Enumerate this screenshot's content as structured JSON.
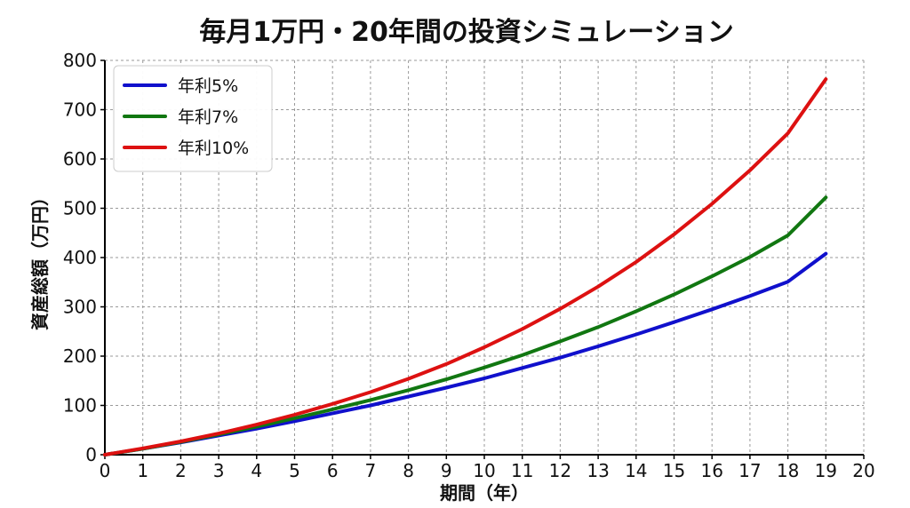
{
  "chart_data": {
    "type": "line",
    "title": "毎月1万円・20年間の投資シミュレーション",
    "xlabel": "期間（年）",
    "ylabel": "資産総額（万円）",
    "xlim": [
      0,
      20
    ],
    "ylim": [
      0,
      800
    ],
    "x_ticks": [
      "0",
      "1",
      "2",
      "3",
      "4",
      "5",
      "6",
      "7",
      "8",
      "9",
      "10",
      "11",
      "12",
      "13",
      "14",
      "15",
      "16",
      "17",
      "18",
      "19",
      "20"
    ],
    "y_ticks": [
      "0",
      "100",
      "200",
      "300",
      "400",
      "500",
      "600",
      "700",
      "800"
    ],
    "grid": true,
    "legend_position": "top-left",
    "x": [
      0,
      1,
      2,
      3,
      4,
      5,
      6,
      7,
      8,
      9,
      10,
      11,
      12,
      13,
      14,
      15,
      16,
      17,
      18,
      19
    ],
    "series": [
      {
        "name": "年利5%",
        "color": "#1010cc",
        "values": [
          0,
          12,
          25,
          39,
          53,
          68,
          84,
          100,
          118,
          136,
          155,
          176,
          197,
          220,
          244,
          269,
          295,
          322,
          351,
          408
        ]
      },
      {
        "name": "年利7%",
        "color": "#117711",
        "values": [
          0,
          12,
          26,
          41,
          57,
          74,
          92,
          111,
          131,
          153,
          177,
          202,
          230,
          259,
          291,
          325,
          362,
          401,
          445,
          522
        ]
      },
      {
        "name": "年利10%",
        "color": "#dd1111",
        "values": [
          0,
          13,
          27,
          43,
          61,
          81,
          103,
          127,
          154,
          184,
          218,
          255,
          296,
          341,
          391,
          447,
          509,
          577,
          652,
          762
        ]
      }
    ]
  }
}
